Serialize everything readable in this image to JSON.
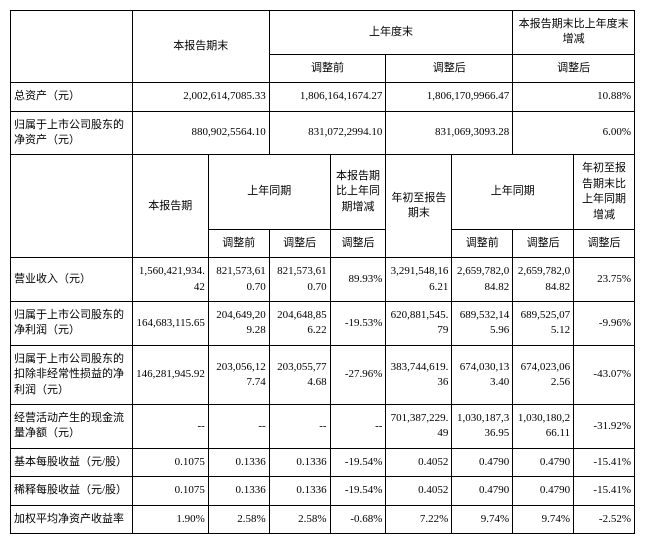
{
  "t1": {
    "headers": {
      "h_current": "本报告期末",
      "h_prev": "上年度末",
      "h_change": "本报告期末比上年度末增减",
      "h_before": "调整前",
      "h_after": "调整后"
    },
    "rows": [
      {
        "label": "总资产（元）",
        "cur": "2,002,614,7085.33",
        "before": "1,806,164,1674.27",
        "after": "1,806,170,9966.47",
        "chg": "10.88%"
      },
      {
        "label": "归属于上市公司股东的净资产（元）",
        "cur": "880,902,5564.10",
        "before": "831,072,2994.10",
        "after": "831,069,3093.28",
        "chg": "6.00%"
      }
    ]
  },
  "t2": {
    "headers": {
      "h_current": "本报告期",
      "h_same": "上年同期",
      "h_change1": "本报告期比上年同期增减",
      "h_ytd": "年初至报告期末",
      "h_change2": "年初至报告期末比上年同期增减",
      "h_before": "调整前",
      "h_after": "调整后"
    },
    "rows": [
      {
        "label": "营业收入（元）",
        "c1": "1,560,421,934.42",
        "c2": "821,573,610.70",
        "c3": "821,573,610.70",
        "c4": "89.93%",
        "c5": "3,291,548,166.21",
        "c6": "2,659,782,084.82",
        "c7": "2,659,782,084.82",
        "c8": "23.75%"
      },
      {
        "label": "归属于上市公司股东的净利润（元）",
        "c1": "164,683,115.65",
        "c2": "204,649,209.28",
        "c3": "204,648,856.22",
        "c4": "-19.53%",
        "c5": "620,881,545.79",
        "c6": "689,532,145.96",
        "c7": "689,525,075.12",
        "c8": "-9.96%"
      },
      {
        "label": "归属于上市公司股东的扣除非经常性损益的净利润（元）",
        "c1": "146,281,945.92",
        "c2": "203,056,127.74",
        "c3": "203,055,774.68",
        "c4": "-27.96%",
        "c5": "383,744,619.36",
        "c6": "674,030,133.40",
        "c7": "674,023,062.56",
        "c8": "-43.07%"
      },
      {
        "label": "经营活动产生的现金流量净额（元）",
        "c1": "--",
        "c2": "--",
        "c3": "--",
        "c4": "--",
        "c5": "701,387,229.49",
        "c6": "1,030,187,336.95",
        "c7": "1,030,180,266.11",
        "c8": "-31.92%"
      },
      {
        "label": "基本每股收益（元/股）",
        "c1": "0.1075",
        "c2": "0.1336",
        "c3": "0.1336",
        "c4": "-19.54%",
        "c5": "0.4052",
        "c6": "0.4790",
        "c7": "0.4790",
        "c8": "-15.41%"
      },
      {
        "label": "稀释每股收益（元/股）",
        "c1": "0.1075",
        "c2": "0.1336",
        "c3": "0.1336",
        "c4": "-19.54%",
        "c5": "0.4052",
        "c6": "0.4790",
        "c7": "0.4790",
        "c8": "-15.41%"
      },
      {
        "label": "加权平均净资产收益率",
        "c1": "1.90%",
        "c2": "2.58%",
        "c3": "2.58%",
        "c4": "-0.68%",
        "c5": "7.22%",
        "c6": "9.74%",
        "c7": "9.74%",
        "c8": "-2.52%"
      }
    ]
  }
}
